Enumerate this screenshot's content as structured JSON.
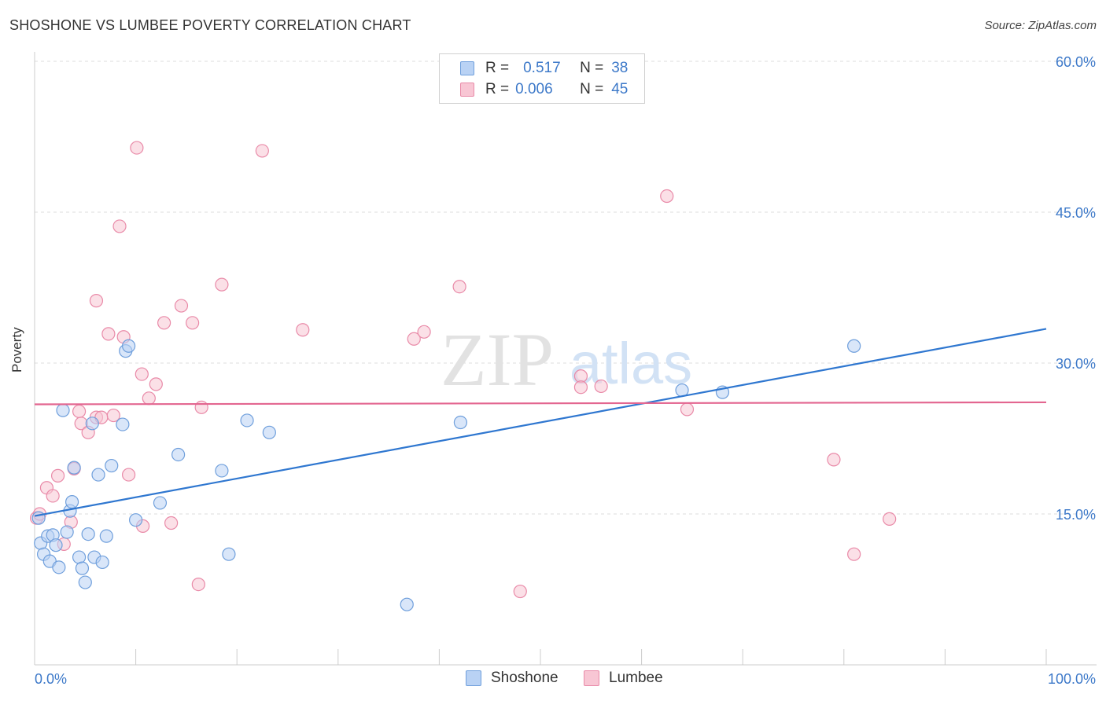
{
  "title": "SHOSHONE VS LUMBEE POVERTY CORRELATION CHART",
  "source": "Source: ZipAtlas.com",
  "watermark": {
    "zip": "ZIP",
    "atlas": "atlas"
  },
  "legend": {
    "rows": [
      {
        "r_label": "R =",
        "r_value": "0.517",
        "n_label": "N =",
        "n_value": "38"
      },
      {
        "r_label": "R =",
        "r_value": "0.006",
        "n_label": "N =",
        "n_value": "45"
      }
    ]
  },
  "colors": {
    "shoshone_fill": "#b9d2f4",
    "shoshone_stroke": "#6f9fdc",
    "shoshone_line": "#2f77d0",
    "lumbee_fill": "#f8c6d4",
    "lumbee_stroke": "#e98aa8",
    "lumbee_line": "#e36690",
    "tick_label": "#3d79c9",
    "grid": "#dddddd"
  },
  "chart_data": {
    "type": "scatter",
    "title": "SHOSHONE VS LUMBEE POVERTY CORRELATION CHART",
    "xlabel": "",
    "ylabel": "Poverty",
    "xlim": [
      0,
      100
    ],
    "ylim": [
      0,
      60
    ],
    "x_tick_labels": [
      "0.0%",
      "100.0%"
    ],
    "y_ticks": [
      15,
      30,
      45,
      60
    ],
    "y_tick_labels": [
      "15.0%",
      "30.0%",
      "45.0%",
      "60.0%"
    ],
    "series": [
      {
        "name": "Shoshone",
        "points": [
          [
            0.4,
            14.6
          ],
          [
            0.6,
            12.1
          ],
          [
            0.9,
            11
          ],
          [
            1.3,
            12.8
          ],
          [
            1.5,
            10.3
          ],
          [
            1.8,
            12.9
          ],
          [
            2.1,
            11.9
          ],
          [
            2.4,
            9.7
          ],
          [
            2.8,
            25.3
          ],
          [
            3.2,
            13.2
          ],
          [
            3.5,
            15.3
          ],
          [
            3.7,
            16.2
          ],
          [
            3.9,
            19.6
          ],
          [
            4.4,
            10.7
          ],
          [
            4.7,
            9.6
          ],
          [
            5.0,
            8.2
          ],
          [
            5.3,
            13.0
          ],
          [
            5.7,
            24.0
          ],
          [
            5.9,
            10.7
          ],
          [
            6.3,
            18.9
          ],
          [
            6.7,
            10.2
          ],
          [
            7.1,
            12.8
          ],
          [
            7.6,
            19.8
          ],
          [
            8.7,
            23.9
          ],
          [
            9.0,
            31.2
          ],
          [
            9.3,
            31.7
          ],
          [
            10.0,
            14.4
          ],
          [
            12.4,
            16.1
          ],
          [
            14.2,
            20.9
          ],
          [
            18.5,
            19.3
          ],
          [
            19.2,
            11.0
          ],
          [
            21.0,
            24.3
          ],
          [
            23.2,
            23.1
          ],
          [
            36.8,
            6.0
          ],
          [
            42.1,
            24.1
          ],
          [
            64.0,
            27.3
          ],
          [
            68.0,
            27.1
          ],
          [
            81.0,
            31.7
          ]
        ],
        "trend": [
          [
            0,
            14.8
          ],
          [
            100,
            33.4
          ]
        ]
      },
      {
        "name": "Lumbee",
        "points": [
          [
            0.2,
            14.6
          ],
          [
            0.5,
            15.0
          ],
          [
            1.2,
            17.6
          ],
          [
            1.8,
            16.8
          ],
          [
            2.3,
            18.8
          ],
          [
            2.9,
            12.0
          ],
          [
            3.6,
            14.2
          ],
          [
            3.9,
            19.5
          ],
          [
            4.4,
            25.2
          ],
          [
            4.6,
            24.0
          ],
          [
            5.3,
            23.1
          ],
          [
            6.1,
            36.2
          ],
          [
            6.1,
            24.6
          ],
          [
            6.6,
            24.6
          ],
          [
            7.3,
            32.9
          ],
          [
            7.8,
            24.8
          ],
          [
            8.4,
            43.6
          ],
          [
            8.8,
            32.6
          ],
          [
            9.3,
            18.9
          ],
          [
            10.1,
            51.4
          ],
          [
            10.6,
            28.9
          ],
          [
            10.7,
            13.8
          ],
          [
            11.3,
            26.5
          ],
          [
            12.0,
            27.9
          ],
          [
            12.8,
            34.0
          ],
          [
            13.5,
            14.1
          ],
          [
            14.5,
            35.7
          ],
          [
            15.6,
            34.0
          ],
          [
            16.2,
            8.0
          ],
          [
            16.5,
            25.6
          ],
          [
            18.5,
            37.8
          ],
          [
            22.5,
            51.1
          ],
          [
            26.5,
            33.3
          ],
          [
            37.5,
            32.4
          ],
          [
            38.5,
            33.1
          ],
          [
            42.0,
            37.6
          ],
          [
            48.0,
            7.3
          ],
          [
            54.0,
            28.7
          ],
          [
            54.0,
            27.6
          ],
          [
            56.0,
            27.7
          ],
          [
            62.5,
            46.6
          ],
          [
            64.5,
            25.4
          ],
          [
            79.0,
            20.4
          ],
          [
            81.0,
            11.0
          ],
          [
            84.5,
            14.5
          ]
        ],
        "trend": [
          [
            0,
            25.9
          ],
          [
            100,
            26.1
          ]
        ]
      }
    ],
    "legend_position": "top-center",
    "grid": true
  },
  "bottom_legend": {
    "shoshone": "Shoshone",
    "lumbee": "Lumbee"
  }
}
